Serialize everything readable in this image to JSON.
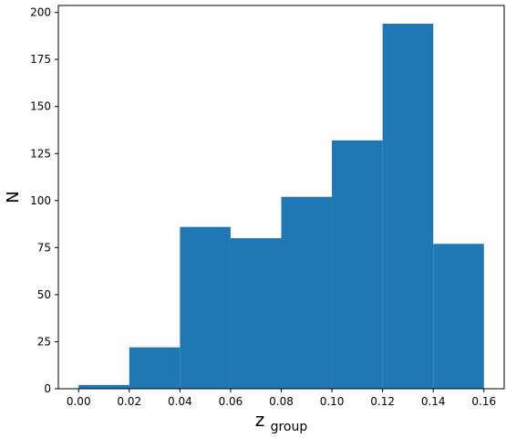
{
  "chart_data": {
    "type": "bar",
    "subtype": "histogram",
    "bin_edges": [
      0.0,
      0.02,
      0.04,
      0.06,
      0.08,
      0.1,
      0.12,
      0.14,
      0.16
    ],
    "values": [
      2,
      22,
      86,
      80,
      102,
      132,
      194,
      77
    ],
    "xlabel": "z",
    "xlabel_subscript": "group",
    "ylabel": "N",
    "xlim": [
      -0.008,
      0.168
    ],
    "ylim": [
      0,
      203.7
    ],
    "xticks": [
      "0.00",
      "0.02",
      "0.04",
      "0.06",
      "0.08",
      "0.10",
      "0.12",
      "0.14",
      "0.16"
    ],
    "yticks": [
      "0",
      "25",
      "50",
      "75",
      "100",
      "125",
      "150",
      "175",
      "200"
    ],
    "xtick_values": [
      0.0,
      0.02,
      0.04,
      0.06,
      0.08,
      0.1,
      0.12,
      0.14,
      0.16
    ],
    "ytick_values": [
      0,
      25,
      50,
      75,
      100,
      125,
      150,
      175,
      200
    ],
    "bar_color": "#1f77b4",
    "grid": false,
    "legend": "none"
  }
}
